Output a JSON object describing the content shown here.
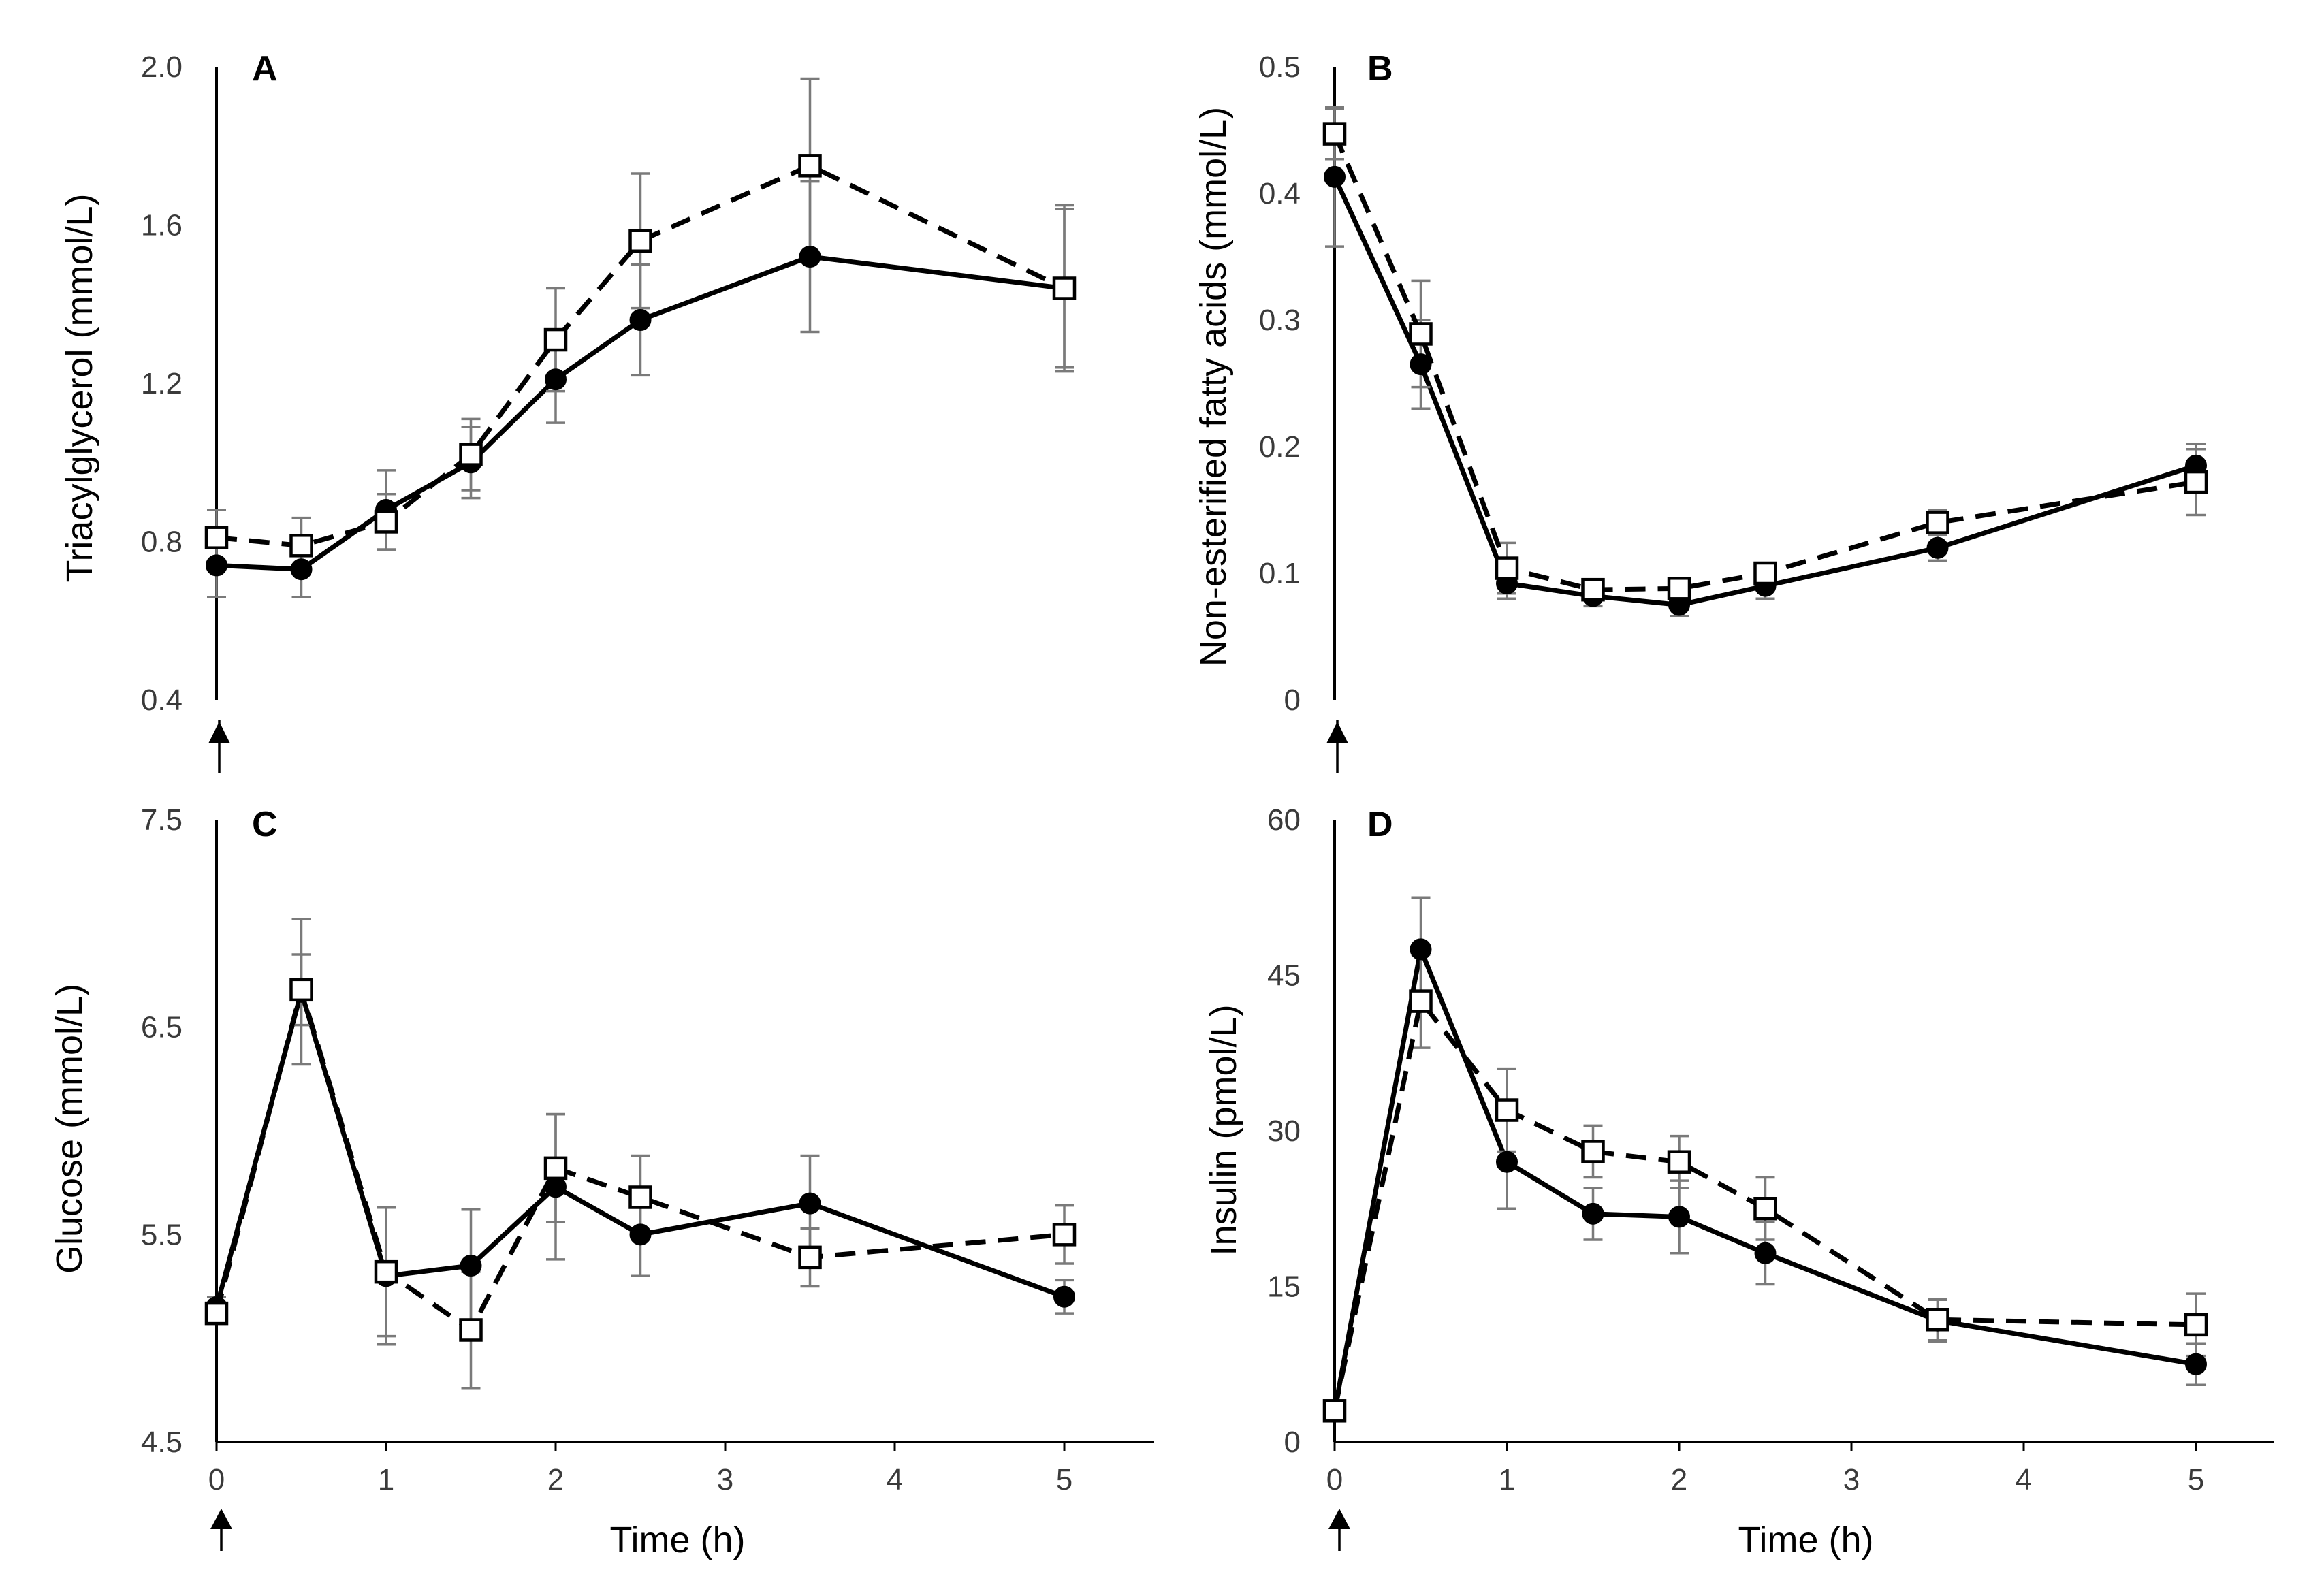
{
  "colors": {
    "line": "#000000",
    "error_bar": "#7a7a7a",
    "axis_text": "#3a3a3a",
    "background": "#ffffff"
  },
  "chart_data": [
    {
      "type": "line",
      "panel": "A",
      "ylabel": "Triacylglycerol (mmol/L)",
      "xlabel": "",
      "show_x_tick_labels": false,
      "ylim": [
        0.4,
        2.0
      ],
      "yticks": [
        0.4,
        0.8,
        1.2,
        1.6,
        2.0
      ],
      "ytick_labels": [
        "0.4",
        "0.8",
        "1.2",
        "1.6",
        "2.0"
      ],
      "xlim": [
        0,
        5.5
      ],
      "xticks": [],
      "xtick_labels": [],
      "series": [
        {
          "name": "filled-circle-solid",
          "x": [
            0,
            0.5,
            1,
            1.5,
            2,
            2.5,
            3.5,
            5
          ],
          "values": [
            0.74,
            0.73,
            0.88,
            1.0,
            1.21,
            1.36,
            1.52,
            1.44
          ],
          "errors": [
            0.08,
            0.07,
            0.1,
            0.09,
            0.11,
            0.14,
            0.19,
            0.2
          ]
        },
        {
          "name": "open-square-dashed",
          "x": [
            0,
            0.5,
            1,
            1.5,
            2,
            2.5,
            3.5,
            5
          ],
          "values": [
            0.81,
            0.79,
            0.85,
            1.02,
            1.31,
            1.56,
            1.75,
            1.44
          ],
          "errors": [
            0.07,
            0.07,
            0.07,
            0.09,
            0.13,
            0.17,
            0.22,
            0.21
          ]
        }
      ]
    },
    {
      "type": "line",
      "panel": "B",
      "ylabel": "Non-esterified fatty acids (mmol/L)",
      "xlabel": "",
      "show_x_tick_labels": false,
      "ylim": [
        0,
        0.5
      ],
      "yticks": [
        0,
        0.1,
        0.2,
        0.3,
        0.4,
        0.5
      ],
      "ytick_labels": [
        "0",
        "0.1",
        "0.2",
        "0.3",
        "0.4",
        "0.5"
      ],
      "xlim": [
        0,
        5.5
      ],
      "xticks": [],
      "xtick_labels": [],
      "series": [
        {
          "name": "filled-circle-solid",
          "x": [
            0,
            0.5,
            1,
            1.5,
            2,
            2.5,
            3.5,
            5
          ],
          "values": [
            0.413,
            0.265,
            0.092,
            0.082,
            0.075,
            0.09,
            0.12,
            0.185
          ],
          "errors": [
            0.055,
            0.035,
            0.012,
            0.008,
            0.009,
            0.01,
            0.01,
            0.017
          ]
        },
        {
          "name": "open-square-dashed",
          "x": [
            0,
            0.5,
            1,
            1.5,
            2,
            2.5,
            3.5,
            5
          ],
          "values": [
            0.447,
            0.289,
            0.104,
            0.087,
            0.088,
            0.1,
            0.14,
            0.172
          ],
          "errors": [
            0.02,
            0.042,
            0.02,
            0.008,
            0.008,
            0.008,
            0.01,
            0.026
          ]
        }
      ]
    },
    {
      "type": "line",
      "panel": "C",
      "ylabel": "Glucose (mmol/L)",
      "xlabel": "Time (h)",
      "show_x_tick_labels": true,
      "ylim": [
        4.5,
        7.5
      ],
      "yticks": [
        4.5,
        5.5,
        6.5,
        7.5
      ],
      "ytick_labels": [
        "4.5",
        "5.5",
        "6.5",
        "7.5"
      ],
      "xlim": [
        0,
        5.5
      ],
      "xticks": [
        0,
        1,
        2,
        3,
        4,
        5
      ],
      "xtick_labels": [
        "0",
        "1",
        "2",
        "3",
        "4",
        "5"
      ],
      "series": [
        {
          "name": "filled-circle-solid",
          "x": [
            0,
            0.5,
            1,
            1.5,
            2,
            2.5,
            3.5,
            5
          ],
          "values": [
            5.15,
            6.67,
            5.3,
            5.35,
            5.73,
            5.5,
            5.65,
            5.2
          ],
          "errors": [
            0.05,
            0.35,
            0.33,
            0.27,
            0.35,
            0.2,
            0.23,
            0.08
          ]
        },
        {
          "name": "open-square-dashed",
          "x": [
            0,
            0.5,
            1,
            1.5,
            2,
            2.5,
            3.5,
            5
          ],
          "values": [
            5.12,
            6.68,
            5.32,
            5.04,
            5.82,
            5.68,
            5.39,
            5.5
          ],
          "errors": [
            0.05,
            0.17,
            0.31,
            0.28,
            0.26,
            0.2,
            0.14,
            0.14
          ]
        }
      ]
    },
    {
      "type": "line",
      "panel": "D",
      "ylabel": "Insulin (pmol/L)",
      "xlabel": "Time (h)",
      "show_x_tick_labels": true,
      "ylim": [
        0,
        60
      ],
      "yticks": [
        0,
        15,
        30,
        45,
        60
      ],
      "ytick_labels": [
        "0",
        "15",
        "30",
        "45",
        "60"
      ],
      "xlim": [
        0,
        5.5
      ],
      "xticks": [
        0,
        1,
        2,
        3,
        4,
        5
      ],
      "xtick_labels": [
        "0",
        "1",
        "2",
        "3",
        "4",
        "5"
      ],
      "series": [
        {
          "name": "filled-circle-solid",
          "x": [
            0,
            0.5,
            1,
            1.5,
            2,
            2.5,
            3.5,
            5
          ],
          "values": [
            3,
            47.5,
            27,
            22,
            21.7,
            18.2,
            11.7,
            7.5
          ],
          "errors": [
            0.8,
            5,
            4.5,
            2.5,
            3.5,
            3,
            2,
            2
          ]
        },
        {
          "name": "open-square-dashed",
          "x": [
            0,
            0.5,
            1,
            1.5,
            2,
            2.5,
            3.5,
            5
          ],
          "values": [
            3,
            42.5,
            32,
            28,
            27,
            22.5,
            11.8,
            11.3
          ],
          "errors": [
            0.8,
            4.5,
            4,
            2.5,
            2.5,
            3,
            2,
            3
          ]
        }
      ]
    }
  ]
}
